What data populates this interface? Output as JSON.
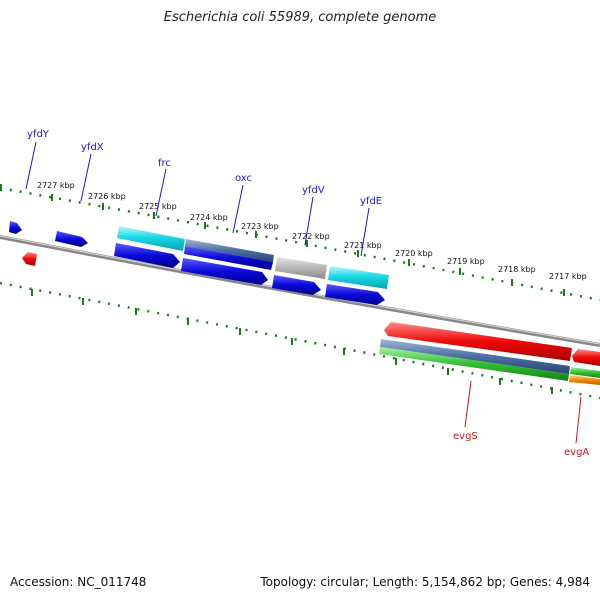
{
  "title": "Escherichia coli 55989, complete genome",
  "accession": "Accession: NC_011748",
  "topology": "Topology: circular; Length: 5,154,862 bp; Genes: 4,984",
  "colors": {
    "backbone": "#888888",
    "forward_cds": "#0a0ad8",
    "cyan": "#19d9e6",
    "steel": "#4a6fa0",
    "gray": "#b5b5b5",
    "red": "#ee0808",
    "green": "#2fc02f",
    "orange": "#f08a00",
    "tick": "#1a7a1a",
    "label_blue": "#1a1acc",
    "label_red": "#cc1111"
  },
  "kbp_labels": [
    "2727 kbp",
    "2726 kbp",
    "2725 kbp",
    "2724 kbp",
    "2723 kbp",
    "2722 kbp",
    "2721 kbp",
    "2720 kbp",
    "2719 kbp",
    "2718 kbp",
    "2717 kbp"
  ],
  "gene_labels": {
    "yfdY": "yfdY",
    "yfdX": "yfdX",
    "frc": "frc",
    "oxc": "oxc",
    "yfdV": "yfdV",
    "yfdE": "yfdE",
    "evgS": "evgS",
    "evgA": "evgA"
  }
}
